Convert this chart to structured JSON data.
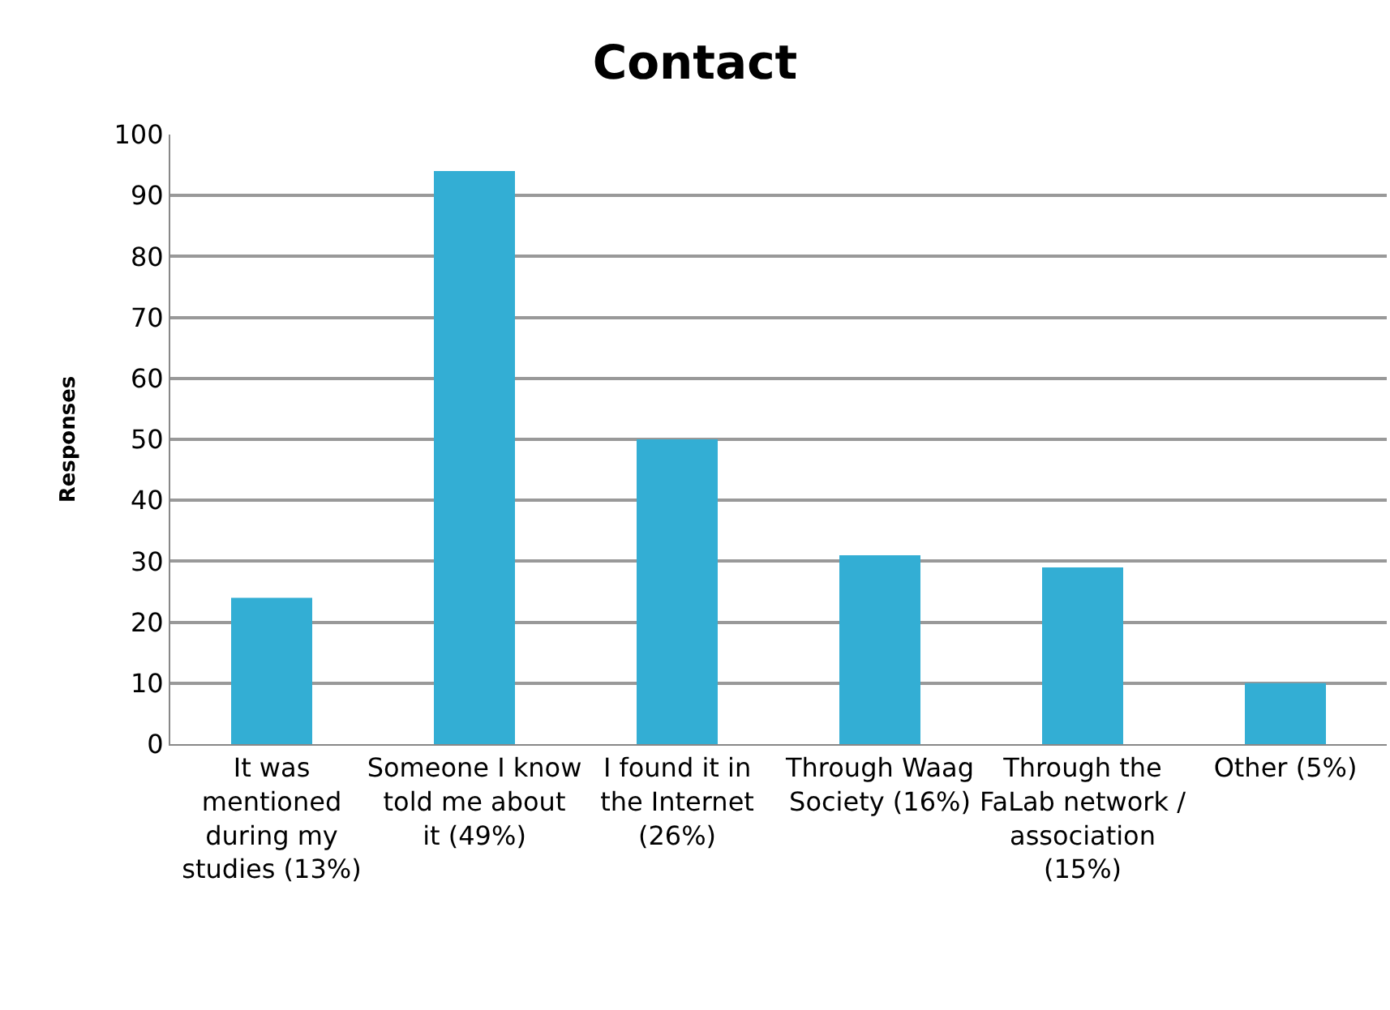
{
  "chart_data": {
    "type": "bar",
    "title": "Contact",
    "ylabel": "Responses",
    "categories": [
      "It was mentioned during my studies (13%)",
      "Someone I know told me about it (49%)",
      "I found it in the Internet (26%)",
      "Through Waag Society (16%)",
      "Through the FaLab network / association (15%)",
      "Other (5%)"
    ],
    "values": [
      24,
      94,
      50,
      31,
      29,
      10
    ],
    "color": "#33aed4",
    "ylim": [
      0,
      100
    ],
    "yticks": [
      0,
      10,
      20,
      30,
      40,
      50,
      60,
      70,
      80,
      90,
      100
    ],
    "grid": "y"
  }
}
